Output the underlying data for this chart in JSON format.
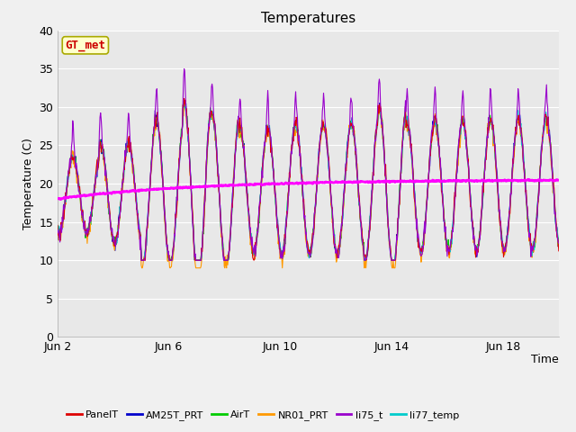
{
  "title": "Temperatures",
  "xlabel": "Time",
  "ylabel": "Temperature (C)",
  "ylim": [
    0,
    40
  ],
  "yticks": [
    0,
    5,
    10,
    15,
    20,
    25,
    30,
    35,
    40
  ],
  "x_start_day": 2,
  "n_days": 18,
  "x_tick_days": [
    2,
    6,
    10,
    14,
    18
  ],
  "x_tick_labels": [
    "Jun 2",
    "Jun 6",
    "Jun 10",
    "Jun 14",
    "Jun 18"
  ],
  "annotation_text": "GT_met",
  "annotation_color": "#cc0000",
  "annotation_bg": "#ffffcc",
  "annotation_border": "#aaaa00",
  "series_colors": {
    "PanelT": "#dd0000",
    "AM25T_PRT": "#0000cc",
    "AirT": "#00cc00",
    "NR01_PRT": "#ff9900",
    "li75_t": "#9900cc",
    "li77_temp": "#00cccc",
    "TC Prof A -32cm": "#ff00ff"
  },
  "plot_bg": "#e8e8e8",
  "fig_bg": "#f0f0f0",
  "grid_color": "#ffffff",
  "title_fontsize": 11,
  "label_fontsize": 9,
  "tick_fontsize": 9,
  "legend_fontsize": 8,
  "figsize": [
    6.4,
    4.8
  ],
  "dpi": 100
}
